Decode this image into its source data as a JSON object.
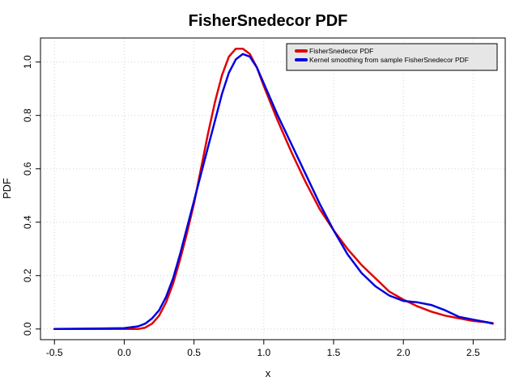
{
  "chart_data": {
    "type": "line",
    "title": "FisherSnedecor PDF",
    "xlabel": "x",
    "ylabel": "PDF",
    "xlim": [
      -0.6,
      2.73
    ],
    "ylim": [
      -0.04,
      1.09
    ],
    "xticks": [
      -0.5,
      0.0,
      0.5,
      1.0,
      1.5,
      2.0,
      2.5
    ],
    "xtick_labels": [
      "-0.5",
      "0.0",
      "0.5",
      "1.0",
      "1.5",
      "2.0",
      "2.5"
    ],
    "yticks": [
      0.0,
      0.2,
      0.4,
      0.6,
      0.8,
      1.0
    ],
    "ytick_labels": [
      "0.0",
      "0.2",
      "0.4",
      "0.6",
      "0.8",
      "1.0"
    ],
    "grid": true,
    "legend_position": "top-right",
    "series": [
      {
        "name": "FisherSnedecor PDF",
        "color": "#e00000",
        "x": [
          -0.5,
          0.0,
          0.1,
          0.15,
          0.2,
          0.25,
          0.3,
          0.35,
          0.4,
          0.45,
          0.5,
          0.55,
          0.6,
          0.65,
          0.7,
          0.75,
          0.8,
          0.85,
          0.9,
          0.95,
          1.0,
          1.1,
          1.2,
          1.3,
          1.4,
          1.5,
          1.6,
          1.7,
          1.8,
          1.9,
          2.0,
          2.1,
          2.2,
          2.3,
          2.4,
          2.5,
          2.6,
          2.64
        ],
        "y": [
          0.0,
          0.0,
          0.0,
          0.005,
          0.02,
          0.05,
          0.1,
          0.17,
          0.26,
          0.36,
          0.47,
          0.6,
          0.73,
          0.85,
          0.95,
          1.02,
          1.05,
          1.05,
          1.03,
          0.98,
          0.91,
          0.78,
          0.66,
          0.55,
          0.45,
          0.37,
          0.3,
          0.24,
          0.19,
          0.14,
          0.11,
          0.085,
          0.065,
          0.05,
          0.04,
          0.03,
          0.025,
          0.022
        ]
      },
      {
        "name": "Kernel smoothing from sample FisherSnedecor PDF",
        "color": "#0000e0",
        "x": [
          -0.5,
          0.0,
          0.1,
          0.15,
          0.2,
          0.25,
          0.3,
          0.35,
          0.4,
          0.45,
          0.5,
          0.55,
          0.6,
          0.65,
          0.7,
          0.75,
          0.8,
          0.85,
          0.9,
          0.95,
          1.0,
          1.1,
          1.2,
          1.3,
          1.4,
          1.5,
          1.6,
          1.7,
          1.8,
          1.9,
          2.0,
          2.1,
          2.2,
          2.3,
          2.4,
          2.5,
          2.6,
          2.64
        ],
        "y": [
          0.0,
          0.003,
          0.01,
          0.02,
          0.04,
          0.07,
          0.12,
          0.19,
          0.28,
          0.38,
          0.48,
          0.58,
          0.68,
          0.78,
          0.88,
          0.96,
          1.01,
          1.03,
          1.02,
          0.98,
          0.92,
          0.8,
          0.69,
          0.58,
          0.47,
          0.37,
          0.28,
          0.21,
          0.16,
          0.125,
          0.105,
          0.1,
          0.09,
          0.07,
          0.045,
          0.035,
          0.025,
          0.02
        ]
      }
    ]
  }
}
